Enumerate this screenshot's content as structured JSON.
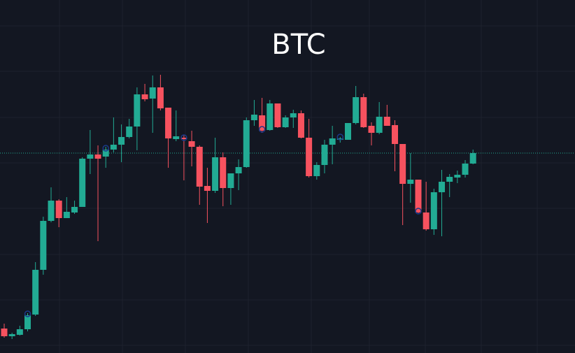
{
  "chart_data": {
    "type": "candlestick",
    "title": "BTC",
    "up_color": "#22ab94",
    "down_color": "#f7525f",
    "ylim": [
      0,
      505
    ],
    "open": [
      35,
      24,
      26,
      34,
      55,
      119,
      189,
      218,
      193,
      201,
      209,
      278,
      284,
      281,
      291,
      298,
      309,
      324,
      370,
      364,
      380,
      351,
      306,
      308,
      303,
      295,
      239,
      232,
      280,
      236,
      257,
      266,
      333,
      340,
      319,
      357,
      323,
      337,
      343,
      308,
      253,
      269,
      298,
      305,
      305,
      329,
      366,
      325,
      315,
      338,
      326,
      299,
      242,
      248,
      201,
      177,
      230,
      245,
      251,
      255,
      271
    ],
    "high": [
      42,
      29,
      39,
      57,
      130,
      195,
      237,
      220,
      223,
      218,
      280,
      319,
      297,
      295,
      337,
      327,
      335,
      380,
      385,
      397,
      398,
      351,
      347,
      312,
      318,
      297,
      265,
      308,
      287,
      257,
      277,
      337,
      362,
      365,
      362,
      357,
      340,
      348,
      347,
      335,
      273,
      305,
      325,
      309,
      329,
      382,
      371,
      330,
      359,
      355,
      333,
      299,
      286,
      248,
      245,
      235,
      262,
      256,
      261,
      276,
      291
    ],
    "low": [
      22,
      20,
      25,
      31,
      53,
      112,
      187,
      180,
      193,
      199,
      209,
      256,
      160,
      265,
      287,
      273,
      307,
      290,
      360,
      315,
      347,
      265,
      303,
      247,
      267,
      212,
      186,
      229,
      210,
      212,
      233,
      265,
      325,
      315,
      318,
      322,
      322,
      322,
      307,
      251,
      248,
      257,
      270,
      301,
      305,
      327,
      322,
      297,
      313,
      325,
      260,
      183,
      215,
      200,
      175,
      169,
      167,
      223,
      243,
      251,
      270
    ],
    "close": [
      24,
      27,
      34,
      54,
      119,
      189,
      218,
      193,
      202,
      209,
      278,
      284,
      278,
      291,
      298,
      309,
      324,
      370,
      363,
      380,
      350,
      307,
      310,
      306,
      295,
      238,
      232,
      280,
      236,
      257,
      266,
      333,
      341,
      318,
      357,
      323,
      337,
      343,
      308,
      253,
      269,
      298,
      307,
      307,
      329,
      366,
      323,
      315,
      338,
      325,
      299,
      242,
      248,
      201,
      177,
      230,
      245,
      252,
      255,
      271,
      286
    ]
  }
}
